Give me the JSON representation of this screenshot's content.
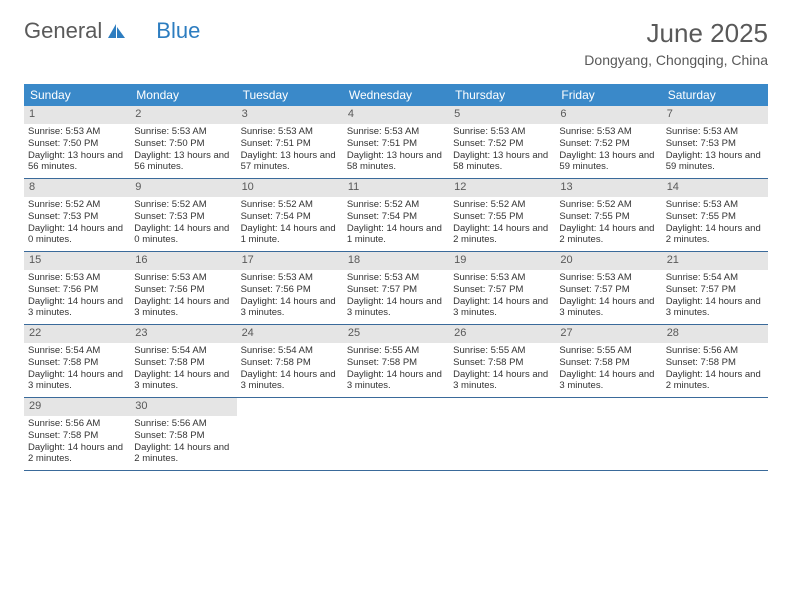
{
  "logo": {
    "part1": "General",
    "part2": "Blue"
  },
  "title": "June 2025",
  "location": "Dongyang, Chongqing, China",
  "colors": {
    "header_bg": "#3a89c9",
    "header_text": "#ffffff",
    "daynum_bg": "#e5e5e5",
    "text": "#333333",
    "title_color": "#595959",
    "week_border": "#3a6a9a",
    "logo_gray": "#5a5a5a",
    "logo_blue": "#2d7dc0"
  },
  "dayNames": [
    "Sunday",
    "Monday",
    "Tuesday",
    "Wednesday",
    "Thursday",
    "Friday",
    "Saturday"
  ],
  "weeks": [
    [
      {
        "n": 1,
        "sr": "5:53 AM",
        "ss": "7:50 PM",
        "dl": "13 hours and 56 minutes."
      },
      {
        "n": 2,
        "sr": "5:53 AM",
        "ss": "7:50 PM",
        "dl": "13 hours and 56 minutes."
      },
      {
        "n": 3,
        "sr": "5:53 AM",
        "ss": "7:51 PM",
        "dl": "13 hours and 57 minutes."
      },
      {
        "n": 4,
        "sr": "5:53 AM",
        "ss": "7:51 PM",
        "dl": "13 hours and 58 minutes."
      },
      {
        "n": 5,
        "sr": "5:53 AM",
        "ss": "7:52 PM",
        "dl": "13 hours and 58 minutes."
      },
      {
        "n": 6,
        "sr": "5:53 AM",
        "ss": "7:52 PM",
        "dl": "13 hours and 59 minutes."
      },
      {
        "n": 7,
        "sr": "5:53 AM",
        "ss": "7:53 PM",
        "dl": "13 hours and 59 minutes."
      }
    ],
    [
      {
        "n": 8,
        "sr": "5:52 AM",
        "ss": "7:53 PM",
        "dl": "14 hours and 0 minutes."
      },
      {
        "n": 9,
        "sr": "5:52 AM",
        "ss": "7:53 PM",
        "dl": "14 hours and 0 minutes."
      },
      {
        "n": 10,
        "sr": "5:52 AM",
        "ss": "7:54 PM",
        "dl": "14 hours and 1 minute."
      },
      {
        "n": 11,
        "sr": "5:52 AM",
        "ss": "7:54 PM",
        "dl": "14 hours and 1 minute."
      },
      {
        "n": 12,
        "sr": "5:52 AM",
        "ss": "7:55 PM",
        "dl": "14 hours and 2 minutes."
      },
      {
        "n": 13,
        "sr": "5:52 AM",
        "ss": "7:55 PM",
        "dl": "14 hours and 2 minutes."
      },
      {
        "n": 14,
        "sr": "5:53 AM",
        "ss": "7:55 PM",
        "dl": "14 hours and 2 minutes."
      }
    ],
    [
      {
        "n": 15,
        "sr": "5:53 AM",
        "ss": "7:56 PM",
        "dl": "14 hours and 3 minutes."
      },
      {
        "n": 16,
        "sr": "5:53 AM",
        "ss": "7:56 PM",
        "dl": "14 hours and 3 minutes."
      },
      {
        "n": 17,
        "sr": "5:53 AM",
        "ss": "7:56 PM",
        "dl": "14 hours and 3 minutes."
      },
      {
        "n": 18,
        "sr": "5:53 AM",
        "ss": "7:57 PM",
        "dl": "14 hours and 3 minutes."
      },
      {
        "n": 19,
        "sr": "5:53 AM",
        "ss": "7:57 PM",
        "dl": "14 hours and 3 minutes."
      },
      {
        "n": 20,
        "sr": "5:53 AM",
        "ss": "7:57 PM",
        "dl": "14 hours and 3 minutes."
      },
      {
        "n": 21,
        "sr": "5:54 AM",
        "ss": "7:57 PM",
        "dl": "14 hours and 3 minutes."
      }
    ],
    [
      {
        "n": 22,
        "sr": "5:54 AM",
        "ss": "7:58 PM",
        "dl": "14 hours and 3 minutes."
      },
      {
        "n": 23,
        "sr": "5:54 AM",
        "ss": "7:58 PM",
        "dl": "14 hours and 3 minutes."
      },
      {
        "n": 24,
        "sr": "5:54 AM",
        "ss": "7:58 PM",
        "dl": "14 hours and 3 minutes."
      },
      {
        "n": 25,
        "sr": "5:55 AM",
        "ss": "7:58 PM",
        "dl": "14 hours and 3 minutes."
      },
      {
        "n": 26,
        "sr": "5:55 AM",
        "ss": "7:58 PM",
        "dl": "14 hours and 3 minutes."
      },
      {
        "n": 27,
        "sr": "5:55 AM",
        "ss": "7:58 PM",
        "dl": "14 hours and 3 minutes."
      },
      {
        "n": 28,
        "sr": "5:56 AM",
        "ss": "7:58 PM",
        "dl": "14 hours and 2 minutes."
      }
    ],
    [
      {
        "n": 29,
        "sr": "5:56 AM",
        "ss": "7:58 PM",
        "dl": "14 hours and 2 minutes."
      },
      {
        "n": 30,
        "sr": "5:56 AM",
        "ss": "7:58 PM",
        "dl": "14 hours and 2 minutes."
      },
      null,
      null,
      null,
      null,
      null
    ]
  ],
  "labels": {
    "sunrise": "Sunrise:",
    "sunset": "Sunset:",
    "daylight": "Daylight:"
  }
}
